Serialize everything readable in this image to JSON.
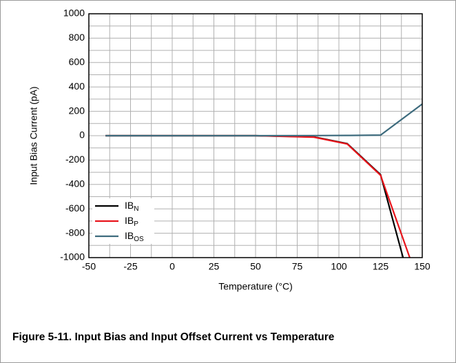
{
  "chart_data": {
    "type": "line",
    "caption": "Figure 5-11. Input Bias and Input Offset Current vs Temperature",
    "x_label": "Temperature (°C)",
    "y_label": "Input Bias Current (pA)",
    "xlim": [
      -50,
      150
    ],
    "xticks": [
      -50,
      -25,
      0,
      25,
      50,
      75,
      100,
      125,
      150
    ],
    "ylim": [
      -1000,
      1000
    ],
    "yticks": [
      -1000,
      -800,
      -600,
      -400,
      -200,
      0,
      200,
      400,
      600,
      800,
      1000
    ],
    "grid": true,
    "legend": "lower left",
    "series": [
      {
        "name": "IB",
        "name_sub": "N",
        "color": "#000000",
        "x": [
          -40,
          25,
          50,
          85,
          105,
          125,
          138.5
        ],
        "values": [
          0,
          0,
          0,
          -10,
          -65,
          -320,
          -1000
        ]
      },
      {
        "name": "IB",
        "name_sub": "P",
        "color": "#e8141b",
        "x": [
          -40,
          25,
          50,
          85,
          105,
          125,
          142.5
        ],
        "values": [
          0,
          0,
          0,
          -12,
          -68,
          -325,
          -1000
        ]
      },
      {
        "name": "IB",
        "name_sub": "OS",
        "color": "#3d6b7d",
        "x": [
          -40,
          25,
          50,
          85,
          105,
          125,
          150
        ],
        "values": [
          0,
          0,
          0,
          1,
          2,
          5,
          260
        ]
      }
    ]
  }
}
